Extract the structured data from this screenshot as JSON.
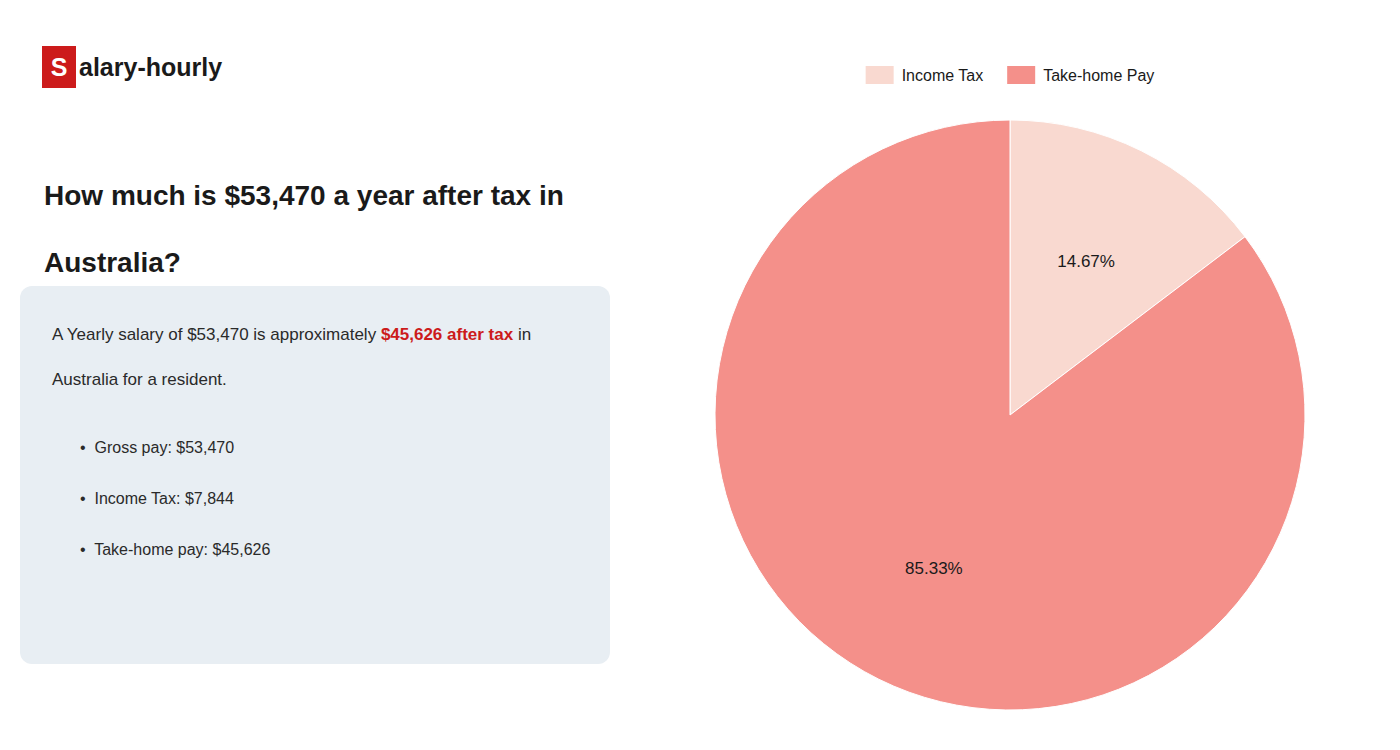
{
  "chart_data": {
    "type": "pie",
    "title": "How much is $53,470 a year after tax in\nAustralia?",
    "annotations": [
      {
        "text": "S",
        "color": "#cc1b1b"
      },
      {
        "text": "alary-hourly"
      },
      {
        "text": "A Yearly salary of $53,470 is approximately "
      },
      {
        "text": "$45,626 after tax",
        "color": "#cc1b1b"
      },
      {
        "text": " in"
      },
      {
        "text": "Australia for a resident."
      },
      {
        "text": "•  Gross pay: $53,470"
      },
      {
        "text": "•  Income Tax: $7,844"
      },
      {
        "text": "•  Take-home pay: $45,626"
      }
    ],
    "categories": [
      "Income Tax",
      "Take-home Pay"
    ],
    "values": [
      14.67,
      85.33
    ],
    "value_labels": [
      "14.67%",
      "85.33%"
    ],
    "colors": [
      "#f9d9d0",
      "#f4908a"
    ],
    "data_labels": true,
    "legend": "top"
  }
}
